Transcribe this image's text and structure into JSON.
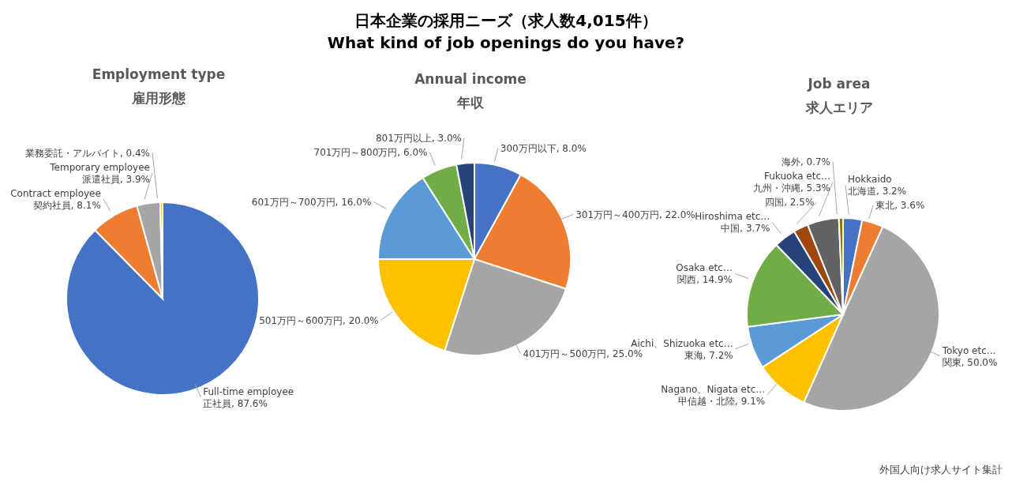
{
  "chart_data": [
    {
      "type": "pie",
      "title": "Employment type",
      "subtitle": "雇用形態",
      "annotations": [
        "日本企業の採用ニーズ（求人数4,015件）",
        "What kind of job openings do you have?"
      ],
      "categories": [
        "Full-time employee\n正社員",
        "Contract employee\n契約社員",
        "Temporary employee\n派遣社員",
        "業務委託・アルバイト"
      ],
      "values": [
        87.6,
        8.1,
        3.9,
        0.4
      ],
      "value_labels": [
        "87.6%",
        "8.1%",
        "3.9%",
        "0.4%"
      ],
      "colors": [
        "#4472c4",
        "#ed7d31",
        "#a5a5a5",
        "#ffc000"
      ]
    },
    {
      "type": "pie",
      "title": "Annual income",
      "subtitle": "年収",
      "categories": [
        "300万円以下",
        "301万円～400万円",
        "401万円～500万円",
        "501万円～600万円",
        "601万円～700万円",
        "701万円～800万円",
        "801万円以上"
      ],
      "values": [
        8.0,
        22.0,
        25.0,
        20.0,
        16.0,
        6.0,
        3.0
      ],
      "value_labels": [
        "8.0%",
        "22.0%",
        "25.0%",
        "20.0%",
        "16.0%",
        "6.0%",
        "3.0%"
      ],
      "colors": [
        "#4472c4",
        "#ed7d31",
        "#a5a5a5",
        "#ffc000",
        "#5b9bd5",
        "#70ad47",
        "#264478"
      ]
    },
    {
      "type": "pie",
      "title": "Job area",
      "subtitle": "求人エリア",
      "annotations": [
        "外国人向け求人サイト集計"
      ],
      "categories": [
        "Hokkaido\n北海道",
        "東北",
        "Tokyo etc…\n関東",
        "Nagano、Nigata etc…\n甲信越・北陸",
        "Aichi、Shizuoka etc…\n東海",
        "Osaka etc…\n関西",
        "Hiroshima etc…\n中国",
        "四国",
        "Fukuoka etc…\n九州・沖縄",
        "海外"
      ],
      "values": [
        3.2,
        3.6,
        50.0,
        9.1,
        7.2,
        14.9,
        3.7,
        2.5,
        5.3,
        0.7
      ],
      "value_labels": [
        "3.2%",
        "3.6%",
        "50.0%",
        "9.1%",
        "7.2%",
        "14.9%",
        "3.7%",
        "2.5%",
        "5.3%",
        "0.7%"
      ],
      "colors": [
        "#4472c4",
        "#ed7d31",
        "#a5a5a5",
        "#ffc000",
        "#5b9bd5",
        "#70ad47",
        "#264478",
        "#9e480e",
        "#636363",
        "#997300"
      ]
    }
  ]
}
